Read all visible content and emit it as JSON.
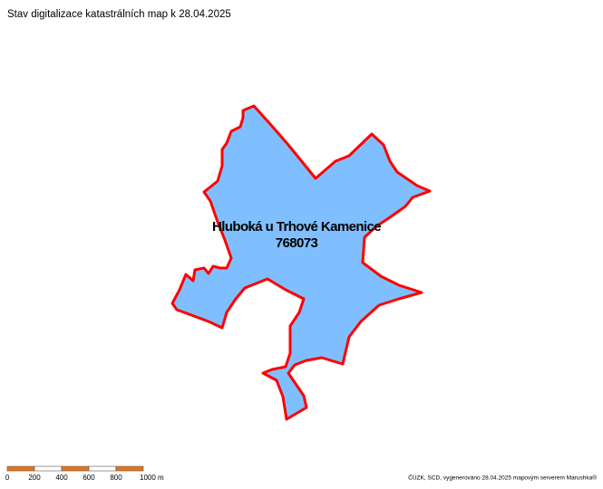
{
  "title": "Stav digitalizace katastrálních map k 28.04.2025",
  "parcel": {
    "name": "Hluboká u Trhové Kamenice",
    "code": "768073"
  },
  "scale_bar": {
    "labels": [
      "0",
      "200",
      "400",
      "600",
      "800",
      "1000 m"
    ]
  },
  "attribution": "ČÚZK, SCD, vygenerováno 28.04.2025 mapovým serverem Marushka®"
}
